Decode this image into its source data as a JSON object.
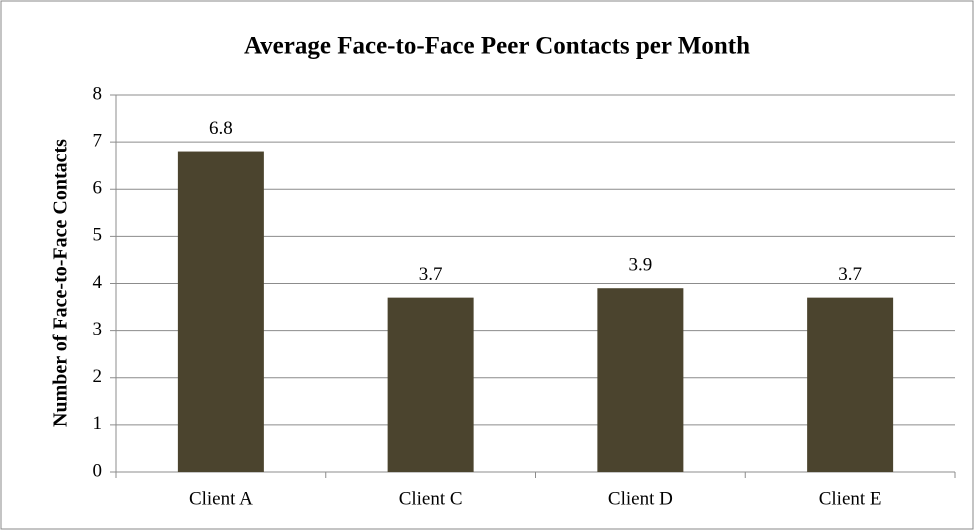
{
  "chart_data": {
    "type": "bar",
    "title": "Average Face-to-Face Peer Contacts per Month",
    "y_label": "Number of Face-to-Face Contacts",
    "categories": [
      "Client A",
      "Client C",
      "Client D",
      "Client E"
    ],
    "values": [
      6.8,
      3.7,
      3.9,
      3.7
    ],
    "color": "#4b442e",
    "ylim": [
      0,
      8
    ],
    "yticks": [
      0,
      1,
      2,
      3,
      4,
      5,
      6,
      7,
      8
    ],
    "grid": true,
    "data_labels": true
  }
}
